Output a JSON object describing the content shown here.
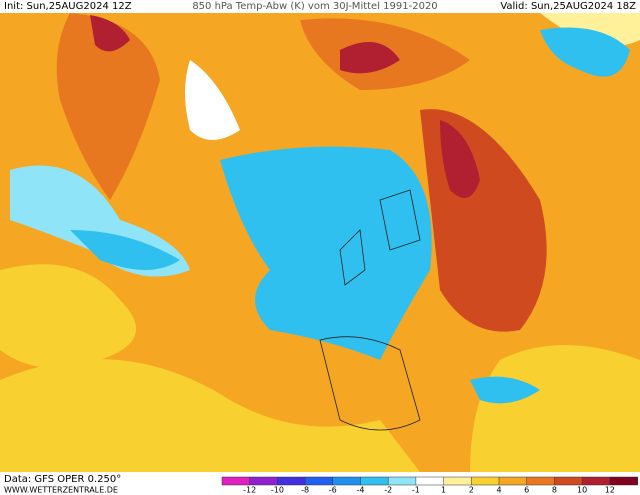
{
  "header": {
    "init": "Init: Sun,25AUG2024 12Z",
    "title": "850 hPa Temp-Abw (K) vom 30J-Mittel 1991-2020",
    "valid": "Valid: Sun,25AUG2024 18Z"
  },
  "footer": {
    "data": "Data: GFS OPER 0.250°",
    "site": "WWW.WETTERZENTRALE.DE"
  },
  "legend": {
    "ticks": [
      -12,
      -10,
      -8,
      -6,
      -4,
      -2,
      -1,
      1,
      2,
      4,
      6,
      8,
      10,
      12
    ],
    "colors": [
      "#e020c0",
      "#9020d0",
      "#4030e0",
      "#2060f0",
      "#2090f0",
      "#30c0f0",
      "#90e4f8",
      "#ffffff",
      "#fff09a",
      "#f8d030",
      "#f5a623",
      "#e87820",
      "#d04a20",
      "#b02030",
      "#800020"
    ]
  }
}
